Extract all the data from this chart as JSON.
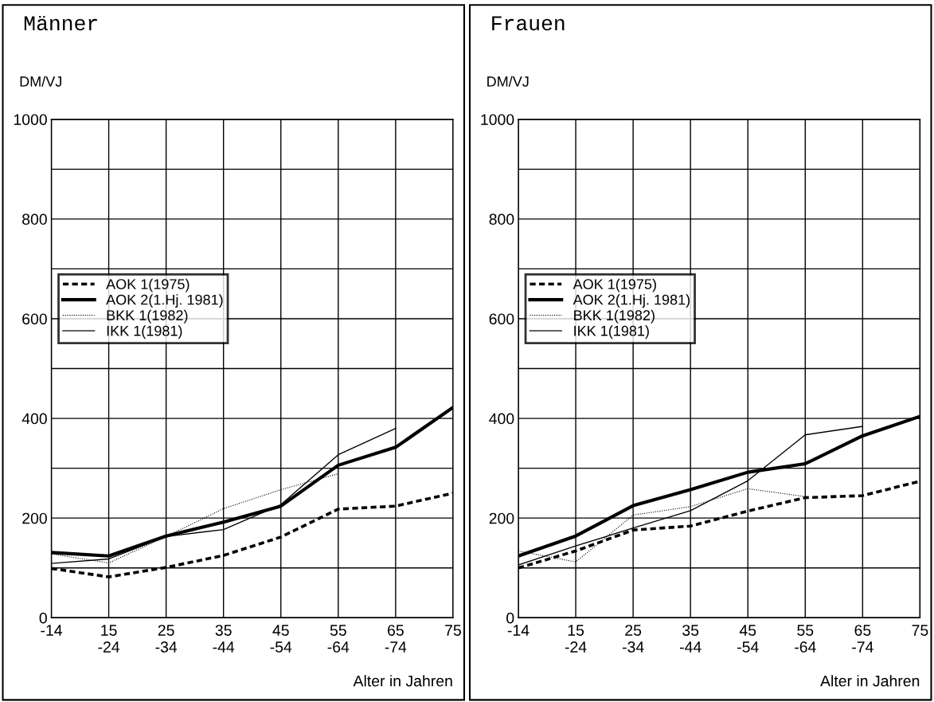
{
  "chart_data": [
    {
      "type": "line",
      "title": "Männer",
      "ylabel": "DM/VJ",
      "xlabel": "Alter in Jahren",
      "categories": [
        "-14",
        "15\n-24",
        "25\n-34",
        "35\n-44",
        "45\n-54",
        "55\n-64",
        "65\n-74",
        "75"
      ],
      "ylim": [
        0,
        1000
      ],
      "yticks": [
        0,
        {
          "value": 100,
          "label": null
        },
        200,
        {
          "value": 300,
          "label": null
        },
        400,
        {
          "value": 500,
          "label": null
        },
        600,
        {
          "value": 700,
          "label": null
        },
        800,
        {
          "value": 900,
          "label": null
        },
        1000
      ],
      "grid": true,
      "legend": "left",
      "marker": "none",
      "series": [
        {
          "name": "AOK 1(1975)",
          "color": "#000000",
          "line_style": "dashed",
          "values": [
            99,
            82,
            101,
            125,
            162,
            218,
            224,
            250
          ]
        },
        {
          "name": "AOK 2(1.Hj. 1981)",
          "color": "#000000",
          "line_style": "solid",
          "values": [
            131,
            124,
            164,
            192,
            224,
            306,
            342,
            422
          ]
        },
        {
          "name": "BKK 1(1982)",
          "color": "#000000",
          "line_style": "dotted",
          "values": [
            128,
            110,
            163,
            219,
            257,
            289,
            null,
            null
          ]
        },
        {
          "name": "IKK 1(1981)",
          "color": "#000000",
          "line_style": "solid",
          "values": [
            109,
            118,
            163,
            177,
            227,
            327,
            380,
            null
          ]
        }
      ]
    },
    {
      "type": "line",
      "title": "Frauen",
      "ylabel": "DM/VJ",
      "xlabel": "Alter in Jahren",
      "categories": [
        "-14",
        "15\n-24",
        "25\n-34",
        "35\n-44",
        "45\n-54",
        "55\n-64",
        "65\n-74",
        "75"
      ],
      "ylim": [
        0,
        1000
      ],
      "yticks": [
        0,
        {
          "value": 100,
          "label": null
        },
        200,
        {
          "value": 300,
          "label": null
        },
        400,
        {
          "value": 500,
          "label": null
        },
        600,
        {
          "value": 700,
          "label": null
        },
        800,
        {
          "value": 900,
          "label": null
        },
        1000
      ],
      "grid": true,
      "legend": "left",
      "marker": "none",
      "series": [
        {
          "name": "AOK 1(1975)",
          "color": "#000000",
          "line_style": "dashed",
          "values": [
            100,
            134,
            176,
            184,
            214,
            241,
            245,
            274
          ]
        },
        {
          "name": "AOK 2(1.Hj. 1981)",
          "color": "#000000",
          "line_style": "solid",
          "values": [
            124,
            164,
            225,
            257,
            292,
            309,
            365,
            404
          ]
        },
        {
          "name": "BKK 1(1982)",
          "color": "#000000",
          "line_style": "dotted",
          "values": [
            134,
            112,
            206,
            223,
            259,
            243,
            null,
            null
          ]
        },
        {
          "name": "IKK 1(1981)",
          "color": "#000000",
          "line_style": "solid",
          "values": [
            106,
            144,
            180,
            215,
            275,
            367,
            384,
            null
          ]
        }
      ]
    }
  ]
}
